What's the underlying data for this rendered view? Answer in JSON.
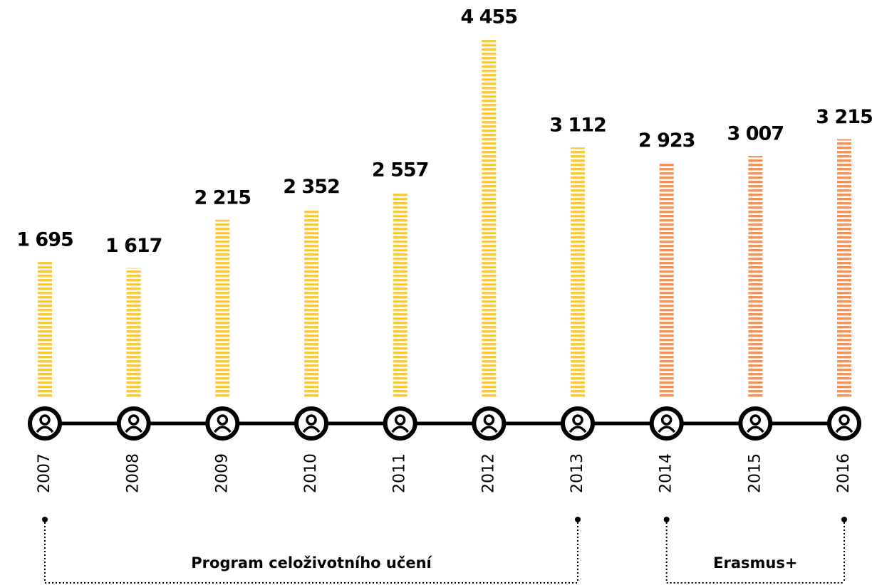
{
  "chart_data": {
    "type": "bar",
    "categories": [
      "2007",
      "2008",
      "2009",
      "2010",
      "2011",
      "2012",
      "2013",
      "2014",
      "2015",
      "2016"
    ],
    "series": [
      {
        "name": "Program celoživotního učení",
        "color": "#f7c844",
        "values": [
          1695,
          1617,
          2215,
          2352,
          2557,
          4455,
          3112,
          null,
          null,
          null
        ],
        "value_labels": [
          "1 695",
          "1 617",
          "2 215",
          "2 352",
          "2 557",
          "4 455",
          "3 112",
          null,
          null,
          null
        ]
      },
      {
        "name": "Erasmus+",
        "color": "#ef9460",
        "values": [
          null,
          null,
          null,
          null,
          null,
          null,
          null,
          2923,
          3007,
          3215
        ],
        "value_labels": [
          null,
          null,
          null,
          null,
          null,
          null,
          null,
          "2 923",
          "3 007",
          "3 215"
        ]
      }
    ]
  }
}
